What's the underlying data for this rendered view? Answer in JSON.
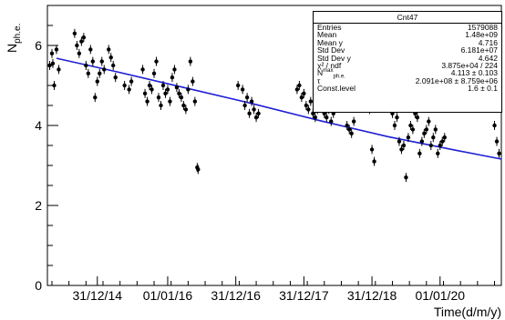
{
  "chart_data": {
    "type": "scatter",
    "ylabel": "N",
    "ylabel_sub": "ph.e.",
    "xlabel": "Time(d/m/y)",
    "ylim": [
      0,
      7
    ],
    "y_ticks": [
      "0",
      "2",
      "4",
      "6"
    ],
    "x_tick_labels": [
      {
        "label": "31/12/14",
        "frac": 0.11
      },
      {
        "label": "01/01/16",
        "frac": 0.265
      },
      {
        "label": "31/12/16",
        "frac": 0.415
      },
      {
        "label": "31/12/17",
        "frac": 0.565
      },
      {
        "label": "31/12/18",
        "frac": 0.715
      },
      {
        "label": "01/01/20",
        "frac": 0.865
      }
    ],
    "fit_line": {
      "color": "#1f1fd6",
      "points": [
        [
          0.02,
          5.68
        ],
        [
          0.15,
          5.35
        ],
        [
          0.3,
          4.95
        ],
        [
          0.45,
          4.55
        ],
        [
          0.6,
          4.12
        ],
        [
          0.75,
          3.72
        ],
        [
          0.9,
          3.38
        ],
        [
          1.0,
          3.16
        ]
      ]
    },
    "points": [
      [
        0.005,
        5.5
      ],
      [
        0.01,
        5.8
      ],
      [
        0.012,
        5.55
      ],
      [
        0.015,
        5.0
      ],
      [
        0.02,
        5.9
      ],
      [
        0.025,
        5.4
      ],
      [
        0.06,
        6.3
      ],
      [
        0.065,
        6.0
      ],
      [
        0.07,
        5.8
      ],
      [
        0.075,
        6.1
      ],
      [
        0.08,
        6.2
      ],
      [
        0.085,
        5.5
      ],
      [
        0.09,
        5.3
      ],
      [
        0.095,
        5.9
      ],
      [
        0.1,
        5.6
      ],
      [
        0.105,
        4.7
      ],
      [
        0.11,
        5.1
      ],
      [
        0.115,
        5.3
      ],
      [
        0.12,
        5.6
      ],
      [
        0.125,
        5.4
      ],
      [
        0.135,
        5.9
      ],
      [
        0.14,
        5.7
      ],
      [
        0.145,
        5.5
      ],
      [
        0.15,
        5.2
      ],
      [
        0.17,
        5.0
      ],
      [
        0.18,
        4.9
      ],
      [
        0.185,
        5.1
      ],
      [
        0.21,
        5.4
      ],
      [
        0.215,
        4.8
      ],
      [
        0.22,
        4.6
      ],
      [
        0.225,
        5.0
      ],
      [
        0.23,
        4.9
      ],
      [
        0.235,
        5.3
      ],
      [
        0.24,
        5.6
      ],
      [
        0.245,
        4.7
      ],
      [
        0.25,
        4.5
      ],
      [
        0.255,
        5.0
      ],
      [
        0.26,
        4.8
      ],
      [
        0.265,
        4.9
      ],
      [
        0.27,
        4.6
      ],
      [
        0.275,
        5.2
      ],
      [
        0.28,
        5.4
      ],
      [
        0.285,
        4.95
      ],
      [
        0.29,
        4.8
      ],
      [
        0.295,
        4.7
      ],
      [
        0.3,
        4.5
      ],
      [
        0.305,
        4.4
      ],
      [
        0.31,
        4.9
      ],
      [
        0.315,
        5.6
      ],
      [
        0.32,
        5.1
      ],
      [
        0.325,
        4.6
      ],
      [
        0.33,
        2.95
      ],
      [
        0.332,
        2.9
      ],
      [
        0.42,
        5.0
      ],
      [
        0.43,
        4.9
      ],
      [
        0.435,
        4.5
      ],
      [
        0.44,
        4.7
      ],
      [
        0.445,
        4.3
      ],
      [
        0.45,
        4.6
      ],
      [
        0.455,
        4.4
      ],
      [
        0.46,
        4.2
      ],
      [
        0.465,
        4.3
      ],
      [
        0.55,
        4.9
      ],
      [
        0.555,
        5.0
      ],
      [
        0.56,
        4.7
      ],
      [
        0.565,
        4.8
      ],
      [
        0.57,
        4.5
      ],
      [
        0.575,
        4.4
      ],
      [
        0.58,
        4.6
      ],
      [
        0.585,
        4.3
      ],
      [
        0.59,
        4.2
      ],
      [
        0.595,
        4.4
      ],
      [
        0.6,
        4.5
      ],
      [
        0.605,
        4.6
      ],
      [
        0.61,
        4.3
      ],
      [
        0.615,
        4.2
      ],
      [
        0.62,
        4.4
      ],
      [
        0.625,
        4.1
      ],
      [
        0.63,
        4.3
      ],
      [
        0.66,
        4.0
      ],
      [
        0.665,
        3.9
      ],
      [
        0.67,
        3.8
      ],
      [
        0.675,
        4.1
      ],
      [
        0.71,
        4.4
      ],
      [
        0.715,
        3.4
      ],
      [
        0.72,
        3.1
      ],
      [
        0.76,
        4.3
      ],
      [
        0.765,
        4.0
      ],
      [
        0.77,
        4.2
      ],
      [
        0.775,
        3.6
      ],
      [
        0.78,
        3.4
      ],
      [
        0.785,
        3.5
      ],
      [
        0.79,
        2.7
      ],
      [
        0.795,
        3.7
      ],
      [
        0.8,
        4.0
      ],
      [
        0.805,
        3.9
      ],
      [
        0.81,
        4.3
      ],
      [
        0.815,
        4.2
      ],
      [
        0.82,
        3.3
      ],
      [
        0.825,
        3.6
      ],
      [
        0.83,
        3.8
      ],
      [
        0.835,
        3.9
      ],
      [
        0.84,
        4.1
      ],
      [
        0.845,
        3.5
      ],
      [
        0.85,
        3.7
      ],
      [
        0.855,
        3.9
      ],
      [
        0.86,
        3.3
      ],
      [
        0.865,
        3.5
      ],
      [
        0.87,
        3.6
      ],
      [
        0.875,
        3.7
      ],
      [
        0.985,
        4.0
      ],
      [
        0.99,
        3.6
      ],
      [
        0.995,
        3.3
      ]
    ]
  },
  "stats": {
    "title": "Cnt47",
    "rows": [
      {
        "k": "Entries",
        "v": "1579088"
      },
      {
        "k": "Mean",
        "v": "1.48e+09"
      },
      {
        "k": "Mean y",
        "v": "4.716"
      },
      {
        "k": "Std Dev",
        "v": "6.181e+07"
      },
      {
        "k": "Std Dev y",
        "v": "4.642"
      },
      {
        "k": "χ² / ndf",
        "v": "3.875e+04 / 224"
      },
      {
        "k": "N",
        "v": "4.113 ± 0.103"
      },
      {
        "k": "τ",
        "v": "2.091e+08 ± 8.759e+06"
      },
      {
        "k": "Const.level",
        "v": "1.6 ± 0.1"
      }
    ],
    "n_sup": "max",
    "n_sub": "ph.e."
  }
}
